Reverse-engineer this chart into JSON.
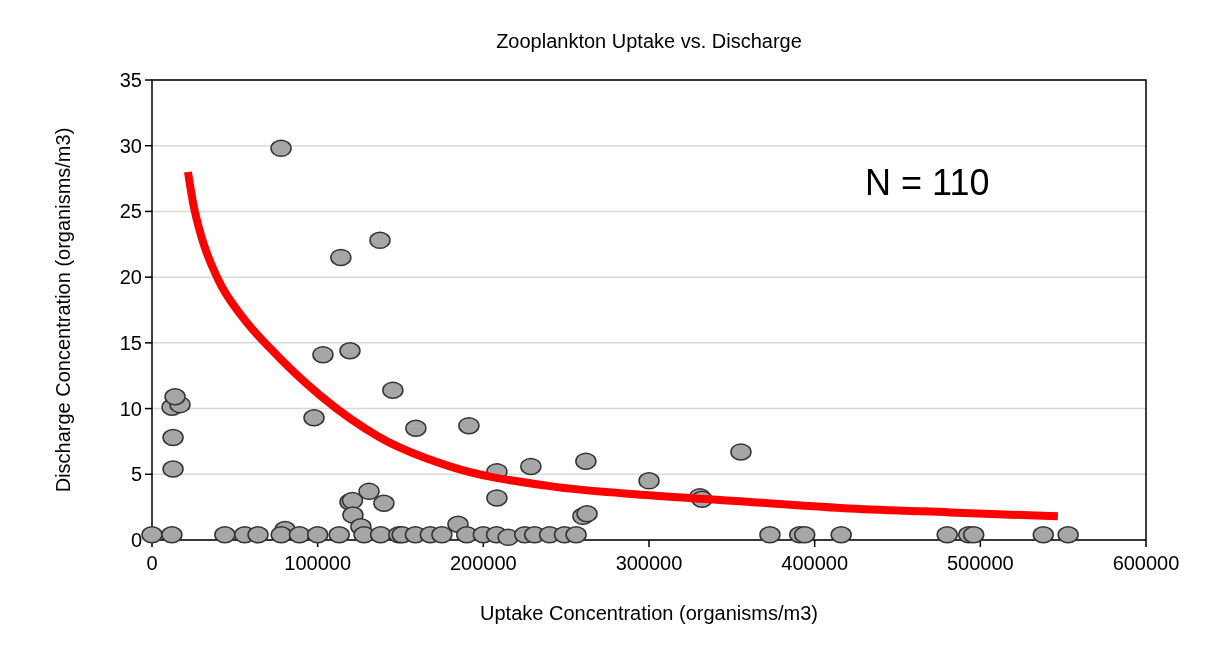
{
  "chart_data": {
    "type": "scatter",
    "title": "Zooplankton Uptake vs. Discharge",
    "xlabel": "Uptake Concentration (organisms/m3)",
    "ylabel": "Discharge Concentration (organisms/m3)",
    "annotations": [
      "N = 110"
    ],
    "xlim": [
      0,
      600000
    ],
    "ylim": [
      0,
      35
    ],
    "xticks": [
      0,
      100000,
      200000,
      300000,
      400000,
      500000,
      600000
    ],
    "yticks": [
      0,
      5,
      10,
      15,
      20,
      25,
      30,
      35
    ],
    "grid": "y",
    "marker": "circle",
    "series": [
      {
        "color": "#a6a6a6",
        "x": [
          77900,
          114000,
          137600,
          103200,
          119500,
          145400,
          97800,
          159300,
          191300,
          12100,
          16900,
          13900,
          12700,
          12700,
          208200,
          228700,
          208200,
          261900,
          355500,
          300000,
          330700,
          332000,
          260100,
          262600,
          131000,
          119500,
          121000,
          140000,
          121300,
          126100,
          184700,
          80300,
          0,
          12000,
          44000,
          56000,
          64000,
          78000,
          89000,
          100000,
          113000,
          128000,
          138000,
          149000,
          151000,
          159000,
          168000,
          175000,
          190000,
          200000,
          208000,
          215000,
          225000,
          231000,
          240000,
          249000,
          256000,
          373000,
          391000,
          394000,
          416000,
          480000,
          493000,
          496000,
          538000,
          553000
        ],
        "values": [
          29.8,
          21.5,
          22.8,
          14.1,
          14.4,
          11.4,
          9.3,
          8.5,
          8.7,
          10.1,
          10.3,
          10.9,
          7.8,
          5.4,
          5.2,
          5.6,
          3.2,
          6.0,
          6.7,
          4.5,
          3.3,
          3.1,
          1.8,
          2.0,
          3.7,
          2.9,
          3.0,
          2.8,
          1.9,
          1.0,
          1.2,
          0.8,
          0.4,
          0.4,
          0.4,
          0.4,
          0.4,
          0.4,
          0.4,
          0.4,
          0.4,
          0.4,
          0.4,
          0.4,
          0.4,
          0.4,
          0.4,
          0.4,
          0.4,
          0.4,
          0.4,
          0.2,
          0.4,
          0.4,
          0.4,
          0.4,
          0.4,
          0.4,
          0.4,
          0.4,
          0.4,
          0.4,
          0.4,
          0.4,
          0.4,
          0.4
        ]
      },
      {
        "type": "line",
        "color": "#ff0000",
        "marker": "none",
        "x": [
          21700,
          25000,
          30000,
          40000,
          55000,
          71200,
          101400,
          137600,
          179800,
          240200,
          300500,
          360900,
          421200,
          481600,
          546800
        ],
        "values": [
          28.0,
          25.5,
          23.0,
          19.8,
          16.9,
          14.6,
          11.0,
          7.8,
          5.6,
          4.1,
          3.4,
          2.9,
          2.4,
          2.1,
          1.8
        ]
      }
    ]
  }
}
